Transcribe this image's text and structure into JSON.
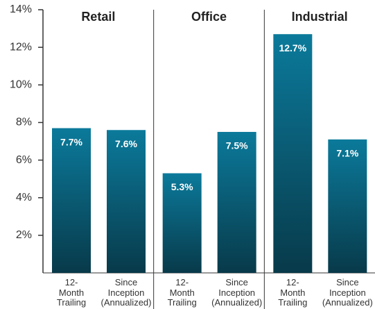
{
  "chart_data": {
    "type": "bar",
    "categories": [
      "12-Month Trailing",
      "Since Inception (Annualized)"
    ],
    "series": [
      {
        "name": "Retail",
        "values": [
          7.7,
          7.6
        ],
        "value_labels": [
          "7.7%",
          "7.6%"
        ]
      },
      {
        "name": "Office",
        "values": [
          5.3,
          7.5
        ],
        "value_labels": [
          "5.3%",
          "7.5%"
        ]
      },
      {
        "name": "Industrial",
        "values": [
          12.7,
          7.1
        ],
        "value_labels": [
          "12.7%",
          "7.1%"
        ]
      }
    ],
    "color": [
      "#0b7a9b",
      "#083a4a"
    ],
    "ylim": [
      0,
      14
    ],
    "yticks": [
      {
        "value": 2,
        "label": "2%"
      },
      {
        "value": 4,
        "label": "4%"
      },
      {
        "value": 6,
        "label": "6%"
      },
      {
        "value": 8,
        "label": "8%"
      },
      {
        "value": 10,
        "label": "10%"
      },
      {
        "value": 12,
        "label": "12%"
      },
      {
        "value": 14,
        "label": "14%"
      }
    ]
  }
}
